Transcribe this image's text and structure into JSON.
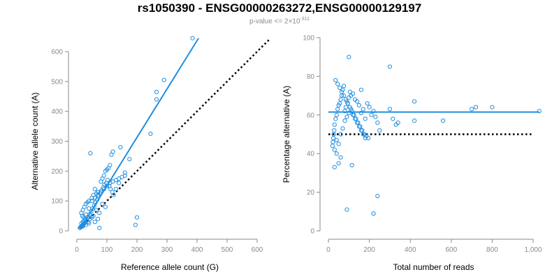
{
  "title": "rs1050390 - ENSG00000263272,ENSG00000129197",
  "subtitle": {
    "prefix": "p-value <= 2×10",
    "exponent": "-311"
  },
  "colors": {
    "series": "#1f8ee0",
    "reference_line": "#000000",
    "axis": "#8a8a8a",
    "text": "#000000"
  },
  "chart_data": [
    {
      "type": "scatter",
      "title": "",
      "xlabel": "Reference allele count (G)",
      "ylabel": "Alternative allele count (A)",
      "xlim": [
        0,
        600
      ],
      "ylim": [
        0,
        600
      ],
      "xticks": [
        0,
        100,
        200,
        300,
        400,
        500,
        600
      ],
      "yticks": [
        0,
        100,
        200,
        300,
        400,
        500,
        600
      ],
      "fit_line": {
        "x": [
          12,
          405
        ],
        "y": [
          8,
          645
        ]
      },
      "reference_line": {
        "x": [
          12,
          640
        ],
        "y": [
          12,
          640
        ],
        "style": "dotted"
      },
      "points": {
        "x": [
          385,
          290,
          265,
          265,
          245,
          145,
          120,
          115,
          110,
          105,
          100,
          95,
          90,
          85,
          80,
          160,
          160,
          175,
          200,
          195,
          45,
          75,
          60,
          70,
          65,
          55,
          50,
          40,
          35,
          30,
          25,
          20,
          15,
          18,
          22,
          28,
          33,
          38,
          42,
          48,
          52,
          58,
          62,
          68,
          72,
          78,
          82,
          88,
          92,
          98,
          102,
          108,
          112,
          118,
          122,
          130,
          140,
          95,
          85,
          75,
          65,
          55,
          45,
          35,
          25,
          15,
          20,
          30,
          40,
          50,
          60,
          70,
          80,
          90,
          100,
          110,
          120,
          130,
          140,
          150,
          70,
          60,
          50,
          40,
          30,
          20,
          10,
          12,
          14,
          16,
          18,
          20,
          22,
          24,
          26,
          28
        ],
        "y": [
          645,
          505,
          465,
          440,
          325,
          280,
          265,
          255,
          220,
          210,
          205,
          200,
          185,
          175,
          165,
          195,
          185,
          240,
          45,
          20,
          260,
          10,
          140,
          130,
          125,
          120,
          110,
          100,
          95,
          90,
          80,
          70,
          60,
          50,
          45,
          40,
          35,
          30,
          55,
          65,
          75,
          85,
          95,
          105,
          115,
          125,
          135,
          145,
          155,
          160,
          170,
          150,
          140,
          130,
          120,
          140,
          160,
          80,
          90,
          60,
          70,
          50,
          40,
          45,
          35,
          25,
          30,
          55,
          75,
          100,
          110,
          120,
          130,
          140,
          150,
          160,
          165,
          170,
          175,
          180,
          40,
          30,
          45,
          25,
          20,
          15,
          10,
          12,
          14,
          16,
          18,
          20,
          22,
          24,
          26,
          28
        ]
      }
    },
    {
      "type": "scatter",
      "title": "",
      "xlabel": "Total number of reads",
      "ylabel": "Percentage alternative (A)",
      "xlim": [
        0,
        1000
      ],
      "ylim": [
        0,
        100
      ],
      "xticks": [
        0,
        200,
        400,
        600,
        800,
        1000
      ],
      "xticklabels": [
        "0",
        "200",
        "400",
        "600",
        "800",
        "1,000"
      ],
      "yticks": [
        0,
        20,
        40,
        60,
        80,
        100
      ],
      "fit_line": {
        "x": [
          0,
          1030
        ],
        "y": [
          61.5,
          61.5
        ]
      },
      "reference_line": {
        "x": [
          0,
          1000
        ],
        "y": [
          50,
          50
        ],
        "style": "dotted"
      },
      "points": {
        "x": [
          100,
          300,
          160,
          420,
          560,
          700,
          720,
          800,
          1030,
          420,
          330,
          340,
          315,
          300,
          250,
          240,
          230,
          220,
          210,
          200,
          190,
          180,
          170,
          160,
          150,
          140,
          130,
          120,
          110,
          105,
          100,
          95,
          90,
          85,
          80,
          75,
          70,
          65,
          60,
          55,
          50,
          45,
          40,
          35,
          30,
          28,
          26,
          24,
          22,
          20,
          30,
          40,
          50,
          60,
          70,
          80,
          90,
          100,
          110,
          120,
          130,
          140,
          150,
          160,
          170,
          180,
          35,
          45,
          55,
          65,
          75,
          85,
          95,
          105,
          115,
          125,
          135,
          145,
          155,
          165,
          175,
          185,
          195,
          240,
          220,
          90,
          115,
          50,
          60,
          30,
          40
        ],
        "y": [
          90,
          85,
          73,
          67,
          57,
          63,
          64,
          64,
          62,
          57,
          55,
          56,
          58,
          63,
          52,
          56,
          59,
          62,
          60,
          64,
          66,
          58,
          63,
          61,
          65,
          67,
          68,
          71,
          70,
          72,
          69,
          66,
          67,
          64,
          62,
          75,
          73,
          70,
          68,
          66,
          65,
          63,
          60,
          58,
          55,
          52,
          50,
          48,
          46,
          44,
          42,
          40,
          45,
          50,
          53,
          57,
          59,
          61,
          63,
          60,
          58,
          56,
          54,
          52,
          50,
          48,
          78,
          76,
          74,
          72,
          70,
          68,
          66,
          64,
          62,
          60,
          58,
          56,
          54,
          52,
          50,
          49,
          48,
          18,
          9,
          11,
          34,
          35,
          38,
          33,
          47
        ]
      }
    }
  ]
}
